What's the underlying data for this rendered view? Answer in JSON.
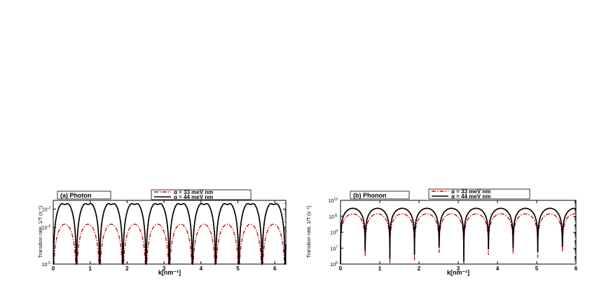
{
  "colors": {
    "series_a": "#cc0000",
    "series_b": "#000000"
  },
  "chart_data": [
    {
      "type": "line",
      "panel_label": "(a) Photon",
      "xlabel": "k[nm⁻¹]",
      "ylabel": "Transition rate, 1/T (s⁻¹)",
      "xlim": [
        0,
        6.3
      ],
      "ylim": [
        1e-05,
        0.03
      ],
      "yscale": "log",
      "x_ticks": [
        "0",
        "1",
        "2",
        "3",
        "4",
        "5",
        "6"
      ],
      "y_ticks": [
        {
          "base": "10",
          "exp": "-5"
        },
        {
          "base": "10",
          "exp": "-3"
        },
        {
          "base": "10",
          "exp": "-2"
        }
      ],
      "legend": [
        "α = 33 meV nm",
        "α = 44 meV nm"
      ],
      "zeros_x": [
        0,
        0.628,
        1.257,
        1.885,
        2.513,
        3.142,
        3.77,
        4.398,
        5.027,
        5.655,
        6.283
      ],
      "series": [
        {
          "name": "α = 33 meV nm",
          "style": "dash-dot",
          "peak_y": 0.0015
        },
        {
          "name": "α = 44 meV nm",
          "style": "solid",
          "peak_y": 0.027
        }
      ]
    },
    {
      "type": "line",
      "panel_label": "(b) Phonon",
      "xlabel": "k[nm⁻¹]",
      "ylabel": "Transition rate, 1/T (s⁻¹)",
      "xlim": [
        0,
        6
      ],
      "ylim": [
        100000.0,
        10000000000000.0
      ],
      "yscale": "log",
      "x_ticks": [
        "0",
        "1",
        "2",
        "3",
        "4",
        "5",
        "6"
      ],
      "y_ticks": [
        {
          "base": "10",
          "exp": "5"
        },
        {
          "base": "10",
          "exp": "7"
        },
        {
          "base": "10",
          "exp": "9"
        },
        {
          "base": "10",
          "exp": "11"
        },
        {
          "base": "10",
          "exp": "13"
        }
      ],
      "legend": [
        "α = 33 meV nm",
        "α = 44 meV nm"
      ],
      "zeros_x": [
        0,
        0.628,
        1.257,
        1.885,
        2.513,
        3.142,
        3.77,
        4.398,
        5.027,
        5.655
      ],
      "series": [
        {
          "name": "α = 33 meV nm",
          "style": "dash-dot",
          "peak_y": 200000000000.0
        },
        {
          "name": "α = 44 meV nm",
          "style": "solid",
          "peak_y": 1000000000000.0
        }
      ]
    }
  ]
}
